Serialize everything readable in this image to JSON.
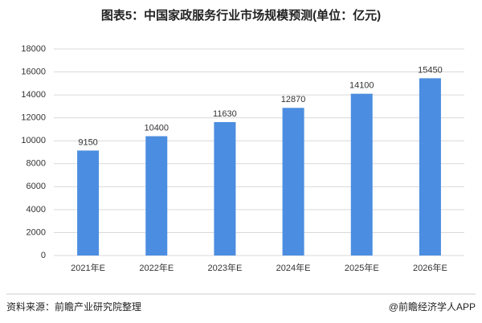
{
  "chart_data": {
    "type": "bar",
    "title": "图表5：中国家政服务行业市场规模预测(单位：亿元)",
    "categories": [
      "2021年E",
      "2022年E",
      "2023年E",
      "2024年E",
      "2025年E",
      "2026年E"
    ],
    "values": [
      9150,
      10400,
      11630,
      12870,
      14100,
      15450
    ],
    "color": "#4b8de0",
    "ylim": [
      0,
      18000
    ],
    "yticks": [
      0,
      2000,
      4000,
      6000,
      8000,
      10000,
      12000,
      14000,
      16000,
      18000
    ],
    "grid": true,
    "data_labels": true,
    "source": "资料来源：前瞻产业研究院整理",
    "credit": "@前瞻经济学人APP"
  }
}
